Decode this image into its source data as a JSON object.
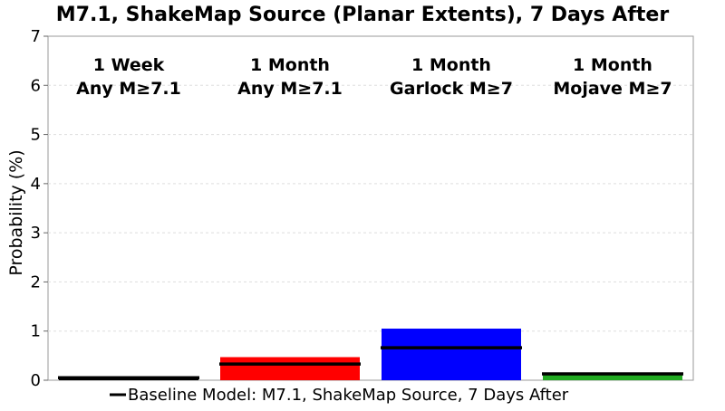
{
  "chart_data": {
    "type": "bar",
    "title": "M7.1, ShakeMap Source (Planar Extents), 7 Days After",
    "xlabel": "",
    "ylabel": "Probability (%)",
    "ylim": [
      0,
      7
    ],
    "yticks": [
      "0",
      "1",
      "2",
      "3",
      "4",
      "5",
      "6",
      "7"
    ],
    "grid": true,
    "categories": [
      {
        "line1": "1 Week",
        "line2": "Any M≥7.1"
      },
      {
        "line1": "1 Month",
        "line2": "Any M≥7.1"
      },
      {
        "line1": "1 Month",
        "line2": "Garlock M≥7"
      },
      {
        "line1": "1 Month",
        "line2": "Mojave M≥7"
      }
    ],
    "values": [
      0.05,
      0.47,
      1.05,
      0.15
    ],
    "colors": [
      "#000000",
      "#ff0000",
      "#0000ff",
      "#22aa22"
    ],
    "baseline": {
      "name": "Baseline Model: M7.1, ShakeMap Source, 7 Days After",
      "values": [
        0.05,
        0.33,
        0.66,
        0.13
      ],
      "color": "#000000"
    },
    "legend_position": "bottom"
  }
}
